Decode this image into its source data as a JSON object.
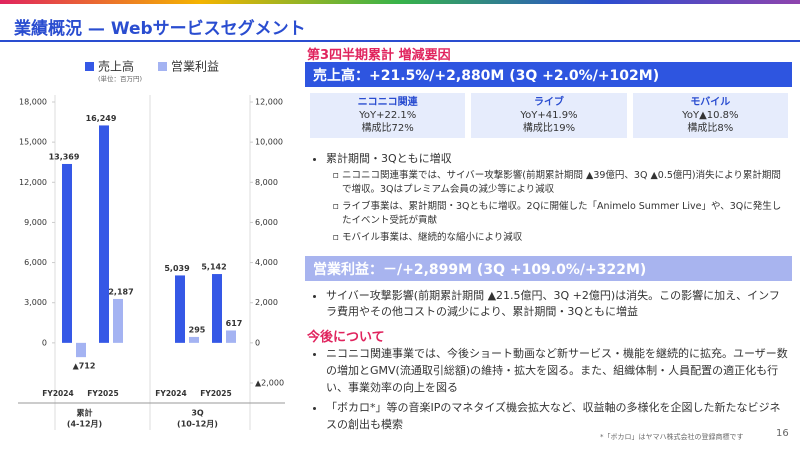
{
  "header": {
    "title": "業績概況 — Webサービスセグメント"
  },
  "chart_data": {
    "type": "bar",
    "categories": [
      "FY2024",
      "FY2025",
      "FY2024",
      "FY2025"
    ],
    "groups": [
      "累計",
      "3Q"
    ],
    "group_periods": [
      "(4-12月)",
      "(10-12月)"
    ],
    "unit_note": "(単位：百万円)",
    "series": [
      {
        "name": "売上高",
        "color": "#3558e6",
        "values": [
          13369,
          16249,
          5039,
          5142
        ],
        "value_labels": [
          "13,369",
          "16,249",
          "5,039",
          "5,142"
        ]
      },
      {
        "name": "営業利益",
        "color": "#a4b3f2",
        "axis": "y2",
        "values": [
          -712,
          2187,
          295,
          617
        ],
        "value_labels": [
          "▲712",
          "2,187",
          "295",
          "617"
        ]
      }
    ],
    "ylim": [
      -3000,
      18000
    ],
    "yticks": [
      0,
      {
        "value": 3000,
        "label": "3,000"
      },
      {
        "value": 6000,
        "label": "6,000"
      },
      {
        "value": 9000,
        "label": "9,000"
      },
      {
        "value": 12000,
        "label": "12,000"
      },
      {
        "value": 15000,
        "label": "15,000"
      },
      {
        "value": 18000,
        "label": "18,000"
      }
    ],
    "y2lim": [
      -2000,
      12000
    ],
    "y2ticks": [
      {
        "value": -2000,
        "label": "▲2,000"
      },
      0,
      {
        "value": 2000,
        "label": "2,000"
      },
      {
        "value": 4000,
        "label": "4,000"
      },
      {
        "value": 6000,
        "label": "6,000"
      },
      {
        "value": 8000,
        "label": "8,000"
      },
      {
        "value": 10000,
        "label": "10,000"
      },
      {
        "value": 12000,
        "label": "12,000"
      }
    ]
  },
  "summary": {
    "title": "第3四半期累計 増減要因",
    "sales_headline": "売上高：+21.5%/+2,880M (3Q +2.0%/+102M)",
    "segments": [
      {
        "name": "ニコニコ関連",
        "yoy": "YoY+22.1%",
        "share": "構成比72%"
      },
      {
        "name": "ライブ",
        "yoy": "YoY+41.9%",
        "share": "構成比19%"
      },
      {
        "name": "モバイル",
        "yoy": "YoY▲10.8%",
        "share": "構成比8%"
      }
    ],
    "sales_bullet": "累計期間・3Qともに増収",
    "sales_sub_bullets": [
      "ニコニコ関連事業では、サイバー攻撃影響(前期累計期間 ▲39億円、3Q ▲0.5億円)消失により累計期間で増収。3Qはプレミアム会員の減少等により減収",
      "ライブ事業は、累計期間・3Qともに増収。2Qに開催した「Animelo Summer Live」や、3Qに発生したイベント受託が貢献",
      "モバイル事業は、継続的な縮小により減収"
    ],
    "profit_headline": "営業利益：－/+2,899M (3Q +109.0%/+322M)",
    "profit_bullet": "サイバー攻撃影響(前期累計期間 ▲21.5億円、3Q +2億円)は消失。この影響に加え、インフラ費用やその他コストの減少により、累計期間・3Qともに増益",
    "outlook_title": "今後について",
    "outlook_bullets": [
      "ニコニコ関連事業では、今後ショート動画など新サービス・機能を継続的に拡充。ユーザー数の増加とGMV(流通取引総額)の維持・拡大を図る。また、組織体制・人員配置の適正化も行い、事業効率の向上を図る",
      "「ボカロ*」等の音楽IPのマネタイズ機会拡大など、収益軸の多様化を企図した新たなビジネスの創出も模索"
    ]
  },
  "footer": {
    "note": "*「ボカロ」はヤマハ株式会社の登録商標です",
    "page": 16
  }
}
